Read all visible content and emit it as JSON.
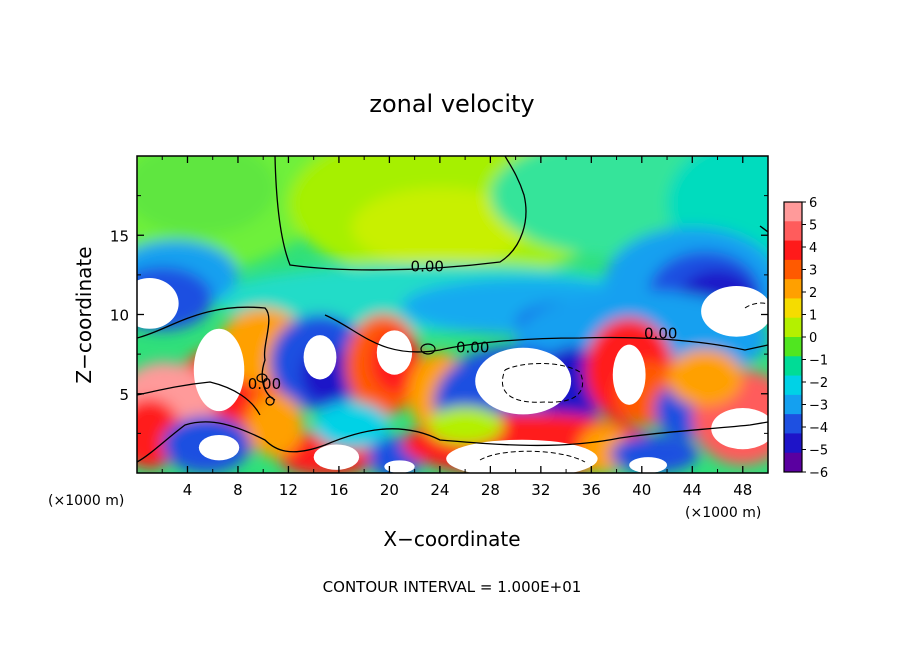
{
  "chart_data": {
    "type": "heatmap",
    "title": "zonal velocity",
    "xlabel": "X−coordinate",
    "ylabel": "Z−coordinate",
    "x_unit_left": "(×1000 m)",
    "x_unit_right": "(×1000 m)",
    "xlim": [
      0,
      50
    ],
    "ylim": [
      0,
      20
    ],
    "x_ticks": [
      4,
      8,
      12,
      16,
      20,
      24,
      28,
      32,
      36,
      40,
      44,
      48
    ],
    "y_ticks": [
      5,
      10,
      15
    ],
    "colorbar": {
      "range": [
        -6,
        6
      ],
      "ticks": [
        "6",
        "5",
        "4",
        "3",
        "2",
        "1",
        "0",
        "−1",
        "−2",
        "−3",
        "−4",
        "−5",
        "−6"
      ],
      "colors": [
        "#ff9a9a",
        "#ff5c5c",
        "#ff1a1a",
        "#ff5a00",
        "#ffa000",
        "#f5dc00",
        "#b4f000",
        "#50e620",
        "#00dc96",
        "#00d2e6",
        "#14a0f0",
        "#1e50e1",
        "#1e14c8",
        "#5a00a0"
      ]
    },
    "contour_labels": [
      {
        "text": "0.00",
        "x": 23.0,
        "y": 12.7
      },
      {
        "text": "0.00",
        "x": 41.5,
        "y": 8.5
      },
      {
        "text": "0.00",
        "x": 26.6,
        "y": 7.6
      },
      {
        "text": "0.00",
        "x": 10.1,
        "y": 5.3
      }
    ],
    "footer": "CONTOUR INTERVAL = 1.000E+01"
  }
}
